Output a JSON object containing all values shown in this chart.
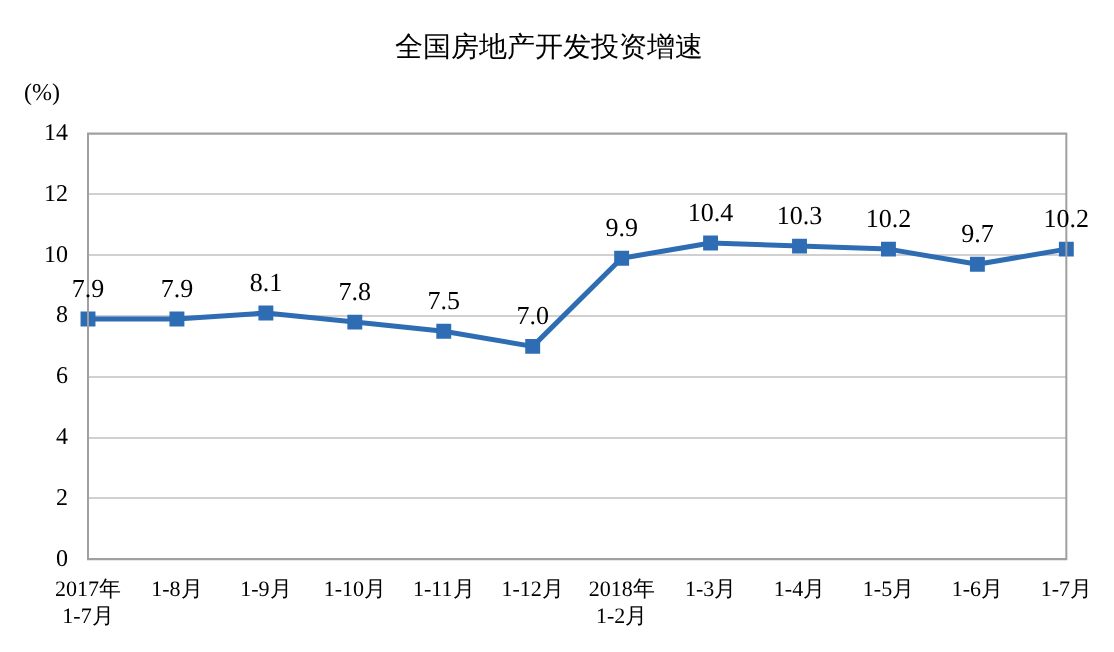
{
  "chart_data": {
    "type": "line",
    "title": "全国房地产开发投资增速",
    "ylabel": "(%)",
    "categories": [
      "2017年\n1-7月",
      "1-8月",
      "1-9月",
      "1-10月",
      "1-11月",
      "1-12月",
      "2018年\n1-2月",
      "1-3月",
      "1-4月",
      "1-5月",
      "1-6月",
      "1-7月"
    ],
    "series": [
      {
        "color": "#2e6db4",
        "values": [
          7.9,
          7.9,
          8.1,
          7.8,
          7.5,
          7.0,
          9.9,
          10.4,
          10.3,
          10.2,
          9.7,
          10.2
        ],
        "value_labels": [
          "7.9",
          "7.9",
          "8.1",
          "7.8",
          "7.5",
          "7.0",
          "9.9",
          "10.4",
          "10.3",
          "10.2",
          "9.7",
          "10.2"
        ]
      }
    ],
    "ylim": [
      0,
      14
    ],
    "yticks": [
      0,
      2,
      4,
      6,
      8,
      10,
      12,
      14
    ],
    "grid": "y",
    "marker": "square",
    "line_style": "solid",
    "legend": false
  }
}
